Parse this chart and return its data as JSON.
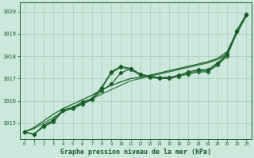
{
  "title": "Graphe pression niveau de la mer (hPa)",
  "background_color": "#cce8dc",
  "grid_color": "#aaccbb",
  "line_color_dark": "#1a5c28",
  "line_color_mid": "#2d7a40",
  "ylim": [
    1014.3,
    1020.4
  ],
  "xlim": [
    -0.5,
    23.5
  ],
  "yticks": [
    1015,
    1016,
    1017,
    1018,
    1019,
    1020
  ],
  "xticks": [
    0,
    1,
    2,
    3,
    4,
    5,
    6,
    7,
    8,
    9,
    10,
    11,
    12,
    13,
    14,
    15,
    16,
    17,
    18,
    19,
    20,
    21,
    22,
    23
  ],
  "series_zigzag1": [
    1014.6,
    1014.5,
    1014.85,
    1015.05,
    1015.55,
    1015.65,
    1015.85,
    1016.05,
    1016.45,
    1016.75,
    1017.25,
    1017.45,
    1017.2,
    1017.1,
    1017.0,
    1017.0,
    1017.1,
    1017.2,
    1017.3,
    1017.3,
    1017.6,
    1018.0,
    1019.1,
    1019.85
  ],
  "series_zigzag2": [
    1014.6,
    1014.5,
    1014.85,
    1015.1,
    1015.55,
    1015.65,
    1015.9,
    1016.1,
    1016.55,
    1017.25,
    1017.5,
    1017.4,
    1017.15,
    1017.05,
    1017.0,
    1017.05,
    1017.1,
    1017.25,
    1017.35,
    1017.35,
    1017.65,
    1018.05,
    1019.1,
    1019.85
  ],
  "series_zigzag3": [
    1014.6,
    1014.5,
    1014.9,
    1015.15,
    1015.6,
    1015.7,
    1015.95,
    1016.1,
    1016.6,
    1017.3,
    1017.55,
    1017.45,
    1017.2,
    1017.1,
    1017.05,
    1017.05,
    1017.15,
    1017.3,
    1017.4,
    1017.4,
    1017.7,
    1018.1,
    1019.15,
    1019.9
  ],
  "series_diag1": [
    1014.6,
    1014.75,
    1015.0,
    1015.25,
    1015.5,
    1015.7,
    1015.9,
    1016.1,
    1016.3,
    1016.5,
    1016.7,
    1016.9,
    1017.0,
    1017.1,
    1017.2,
    1017.3,
    1017.4,
    1017.5,
    1017.6,
    1017.7,
    1017.85,
    1018.1,
    1019.0,
    1019.8
  ],
  "series_diag2": [
    1014.6,
    1014.8,
    1015.1,
    1015.4,
    1015.65,
    1015.85,
    1016.05,
    1016.25,
    1016.5,
    1016.7,
    1016.85,
    1017.0,
    1017.05,
    1017.15,
    1017.25,
    1017.35,
    1017.45,
    1017.55,
    1017.65,
    1017.75,
    1017.9,
    1018.2,
    1019.1,
    1019.9
  ]
}
